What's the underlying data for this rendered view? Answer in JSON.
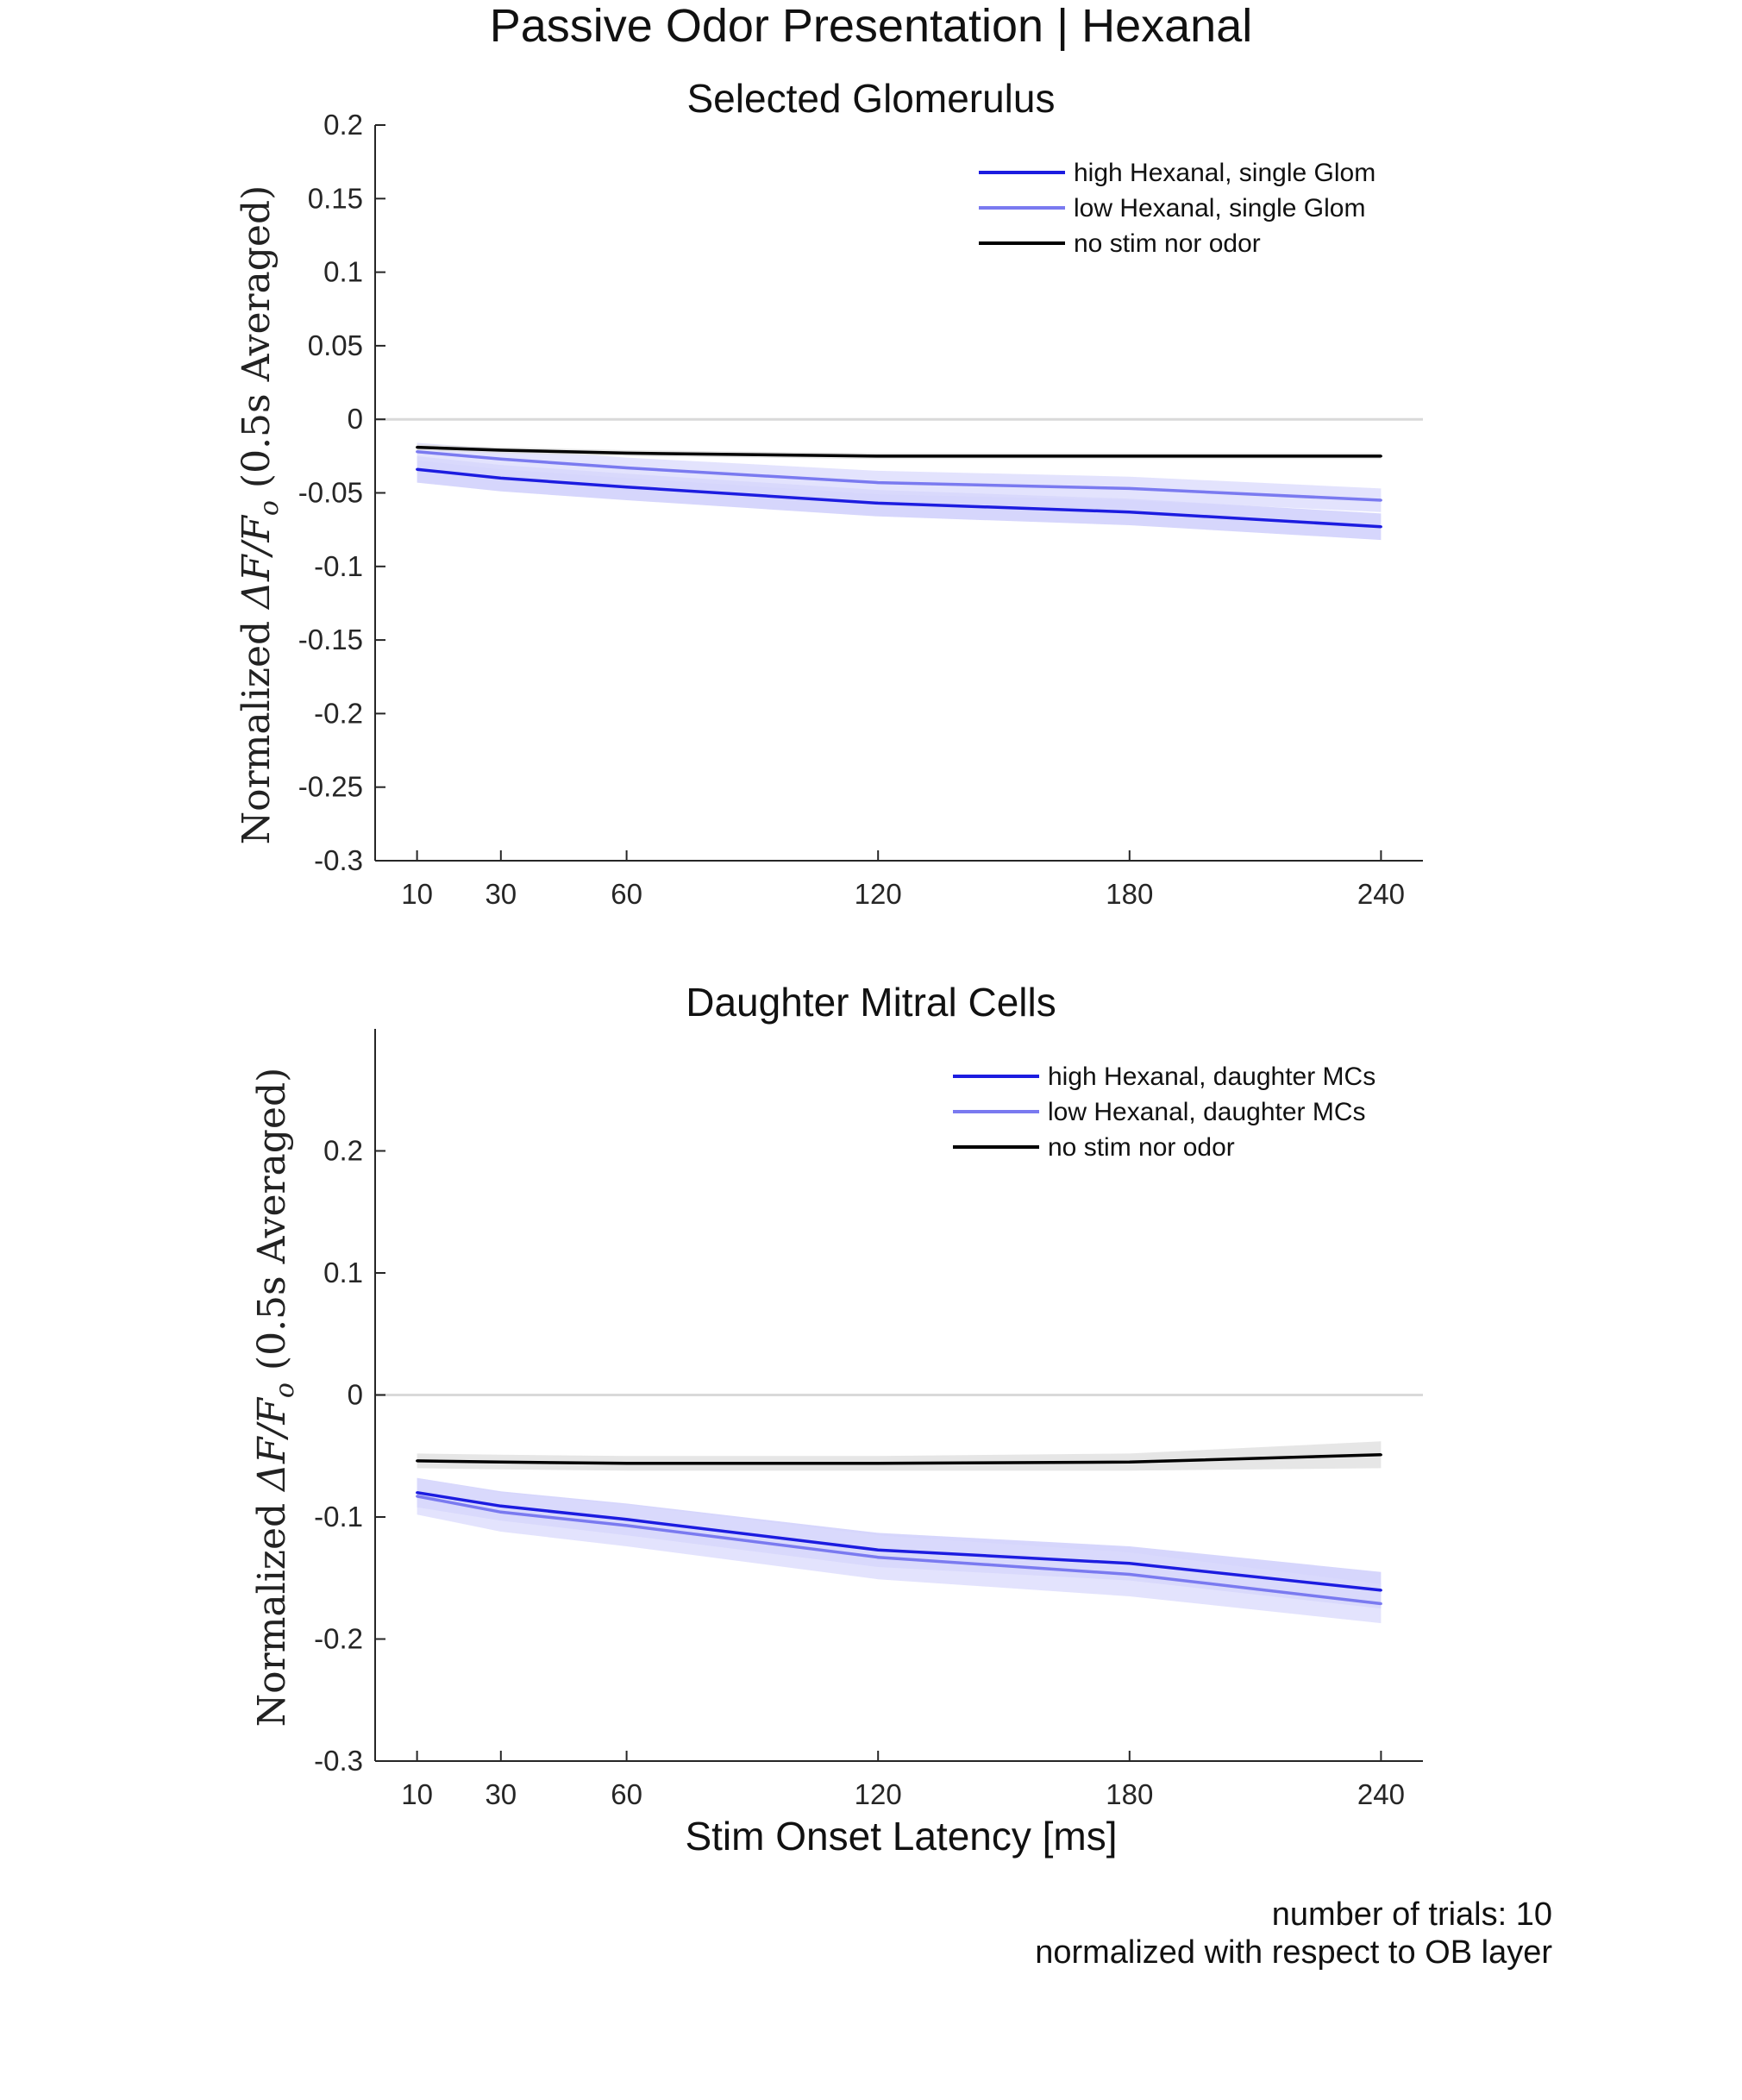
{
  "figure": {
    "title": "Passive Odor Presentation | Hexanal",
    "xlabel": "Stim Onset Latency [ms]",
    "notes": [
      "number of trials: 10",
      "normalized with respect to OB layer"
    ]
  },
  "colors": {
    "high": "#1c1ce0",
    "low": "#7a7af0",
    "none": "#000000",
    "high_band": "#c8c8fb",
    "low_band": "#dadafc",
    "none_band": "#dedede",
    "zero_line": "#d9d9d9"
  },
  "chart_data": [
    {
      "type": "line",
      "title": "Selected Glomerulus",
      "ylabel_text": "Normalized ",
      "ylabel_math": "ΔF/F",
      "ylabel_sub": "o",
      "ylabel_suffix": " (0.5s Averaged)",
      "x": [
        10,
        30,
        60,
        120,
        180,
        240
      ],
      "xlim": [
        0,
        250
      ],
      "ylim": [
        -0.3,
        0.2
      ],
      "yticks": [
        -0.3,
        -0.25,
        -0.2,
        -0.15,
        -0.1,
        -0.05,
        0,
        0.05,
        0.1,
        0.15,
        0.2
      ],
      "ytick_labels": [
        "-0.3",
        "-0.25",
        "-0.2",
        "-0.15",
        "-0.1",
        "-0.05",
        "0",
        "0.05",
        "0.1",
        "0.15",
        "0.2"
      ],
      "xticks": [
        10,
        30,
        60,
        120,
        180,
        240
      ],
      "xtick_labels": [
        "10",
        "30",
        "60",
        "120",
        "180",
        "240"
      ],
      "zero_line": true,
      "legend_position": "top-right",
      "series": [
        {
          "name": "high Hexanal, single Glom",
          "key": "high",
          "values": [
            -0.034,
            -0.04,
            -0.046,
            -0.057,
            -0.063,
            -0.073
          ],
          "band": [
            0.009,
            0.009,
            0.009,
            0.009,
            0.009,
            0.009
          ]
        },
        {
          "name": "low Hexanal, single Glom",
          "key": "low",
          "values": [
            -0.022,
            -0.027,
            -0.033,
            -0.043,
            -0.047,
            -0.055
          ],
          "band": [
            0.006,
            0.007,
            0.007,
            0.008,
            0.008,
            0.008
          ]
        },
        {
          "name": "no stim nor odor",
          "key": "none",
          "values": [
            -0.019,
            -0.021,
            -0.023,
            -0.025,
            -0.025,
            -0.025
          ],
          "band": [
            0.002,
            0.002,
            0.002,
            0.002,
            0.002,
            0.002
          ]
        }
      ]
    },
    {
      "type": "line",
      "title": "Daughter Mitral Cells",
      "ylabel_text": "Normalized ",
      "ylabel_math": "ΔF/F",
      "ylabel_sub": "o",
      "ylabel_suffix": " (0.5s Averaged)",
      "x": [
        10,
        30,
        60,
        120,
        180,
        240
      ],
      "xlim": [
        0,
        250
      ],
      "ylim": [
        -0.3,
        0.3
      ],
      "yticks": [
        -0.3,
        -0.2,
        -0.1,
        0,
        0.1,
        0.2
      ],
      "ytick_labels": [
        "-0.3",
        "-0.2",
        "-0.1",
        "0",
        "0.1",
        "0.2"
      ],
      "xticks": [
        10,
        30,
        60,
        120,
        180,
        240
      ],
      "xtick_labels": [
        "10",
        "30",
        "60",
        "120",
        "180",
        "240"
      ],
      "zero_line": true,
      "legend_position": "top-right",
      "series": [
        {
          "name": "high Hexanal, daughter MCs",
          "key": "high",
          "values": [
            -0.08,
            -0.091,
            -0.102,
            -0.127,
            -0.138,
            -0.16
          ],
          "band": [
            0.012,
            0.012,
            0.013,
            0.014,
            0.014,
            0.015
          ]
        },
        {
          "name": "low Hexanal, daughter MCs",
          "key": "low",
          "values": [
            -0.083,
            -0.096,
            -0.107,
            -0.133,
            -0.147,
            -0.171
          ],
          "band": [
            0.015,
            0.016,
            0.017,
            0.018,
            0.018,
            0.016
          ]
        },
        {
          "name": "no stim nor odor",
          "key": "none",
          "values": [
            -0.054,
            -0.055,
            -0.056,
            -0.056,
            -0.055,
            -0.049
          ],
          "band": [
            0.006,
            0.006,
            0.006,
            0.006,
            0.007,
            0.011
          ]
        }
      ]
    }
  ]
}
